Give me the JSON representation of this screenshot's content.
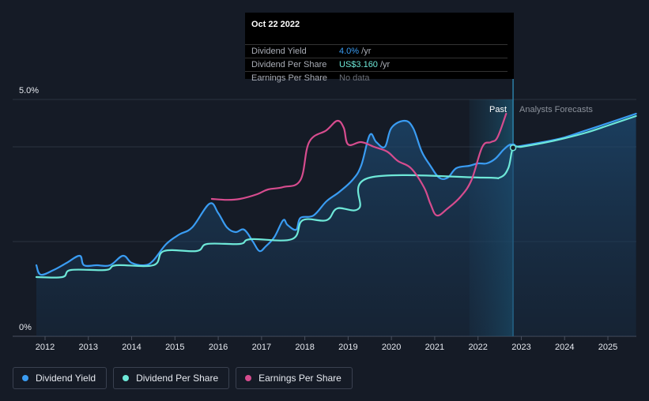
{
  "chart_data": {
    "type": "line",
    "y_axis": {
      "top_label": "5.0%",
      "bottom_label": "0%",
      "ylim": [
        0,
        5.0
      ],
      "grid": true
    },
    "x_ticks": [
      "2012",
      "2013",
      "2014",
      "2015",
      "2016",
      "2017",
      "2018",
      "2019",
      "2020",
      "2021",
      "2022",
      "2023",
      "2024",
      "2025"
    ],
    "xlim": [
      2011.8,
      2025.65
    ],
    "regions": {
      "past_label": "Past",
      "forecast_label": "Analysts Forecasts",
      "past_band_start": 2021.8,
      "present": 2022.81
    },
    "series": [
      {
        "name": "Dividend Yield",
        "color": "#3a9cf2",
        "filled": true,
        "points": [
          [
            2011.8,
            1.5
          ],
          [
            2011.9,
            1.3
          ],
          [
            2012.2,
            1.4
          ],
          [
            2012.5,
            1.55
          ],
          [
            2012.8,
            1.7
          ],
          [
            2012.9,
            1.5
          ],
          [
            2013.2,
            1.5
          ],
          [
            2013.5,
            1.5
          ],
          [
            2013.8,
            1.7
          ],
          [
            2014.0,
            1.55
          ],
          [
            2014.3,
            1.5
          ],
          [
            2014.5,
            1.6
          ],
          [
            2014.8,
            1.95
          ],
          [
            2015.1,
            2.15
          ],
          [
            2015.4,
            2.3
          ],
          [
            2015.8,
            2.8
          ],
          [
            2016.0,
            2.6
          ],
          [
            2016.2,
            2.3
          ],
          [
            2016.4,
            2.2
          ],
          [
            2016.6,
            2.25
          ],
          [
            2016.8,
            2.0
          ],
          [
            2016.95,
            1.8
          ],
          [
            2017.1,
            1.9
          ],
          [
            2017.3,
            2.1
          ],
          [
            2017.5,
            2.45
          ],
          [
            2017.6,
            2.35
          ],
          [
            2017.8,
            2.25
          ],
          [
            2017.9,
            2.5
          ],
          [
            2018.2,
            2.55
          ],
          [
            2018.5,
            2.85
          ],
          [
            2018.8,
            3.05
          ],
          [
            2019.1,
            3.3
          ],
          [
            2019.3,
            3.6
          ],
          [
            2019.5,
            4.25
          ],
          [
            2019.65,
            4.1
          ],
          [
            2019.85,
            4.0
          ],
          [
            2020.0,
            4.4
          ],
          [
            2020.3,
            4.55
          ],
          [
            2020.5,
            4.4
          ],
          [
            2020.7,
            3.9
          ],
          [
            2020.9,
            3.6
          ],
          [
            2021.1,
            3.35
          ],
          [
            2021.3,
            3.35
          ],
          [
            2021.5,
            3.55
          ],
          [
            2021.8,
            3.6
          ],
          [
            2022.0,
            3.65
          ],
          [
            2022.2,
            3.65
          ],
          [
            2022.4,
            3.75
          ],
          [
            2022.6,
            3.95
          ],
          [
            2022.75,
            4.05
          ],
          [
            2022.81,
            4.0
          ],
          [
            2023.0,
            4.02
          ],
          [
            2023.5,
            4.1
          ],
          [
            2024.0,
            4.2
          ],
          [
            2024.5,
            4.35
          ],
          [
            2025.0,
            4.5
          ],
          [
            2025.65,
            4.7
          ]
        ]
      },
      {
        "name": "Dividend Per Share",
        "color": "#6ee8d8",
        "filled": false,
        "points": [
          [
            2011.8,
            1.25
          ],
          [
            2012.4,
            1.25
          ],
          [
            2012.6,
            1.4
          ],
          [
            2013.4,
            1.4
          ],
          [
            2013.65,
            1.5
          ],
          [
            2014.5,
            1.5
          ],
          [
            2014.75,
            1.8
          ],
          [
            2015.5,
            1.8
          ],
          [
            2015.75,
            1.95
          ],
          [
            2016.5,
            1.95
          ],
          [
            2016.75,
            2.05
          ],
          [
            2017.7,
            2.05
          ],
          [
            2017.95,
            2.45
          ],
          [
            2018.5,
            2.45
          ],
          [
            2018.75,
            2.7
          ],
          [
            2019.25,
            2.7
          ],
          [
            2019.5,
            3.35
          ],
          [
            2022.1,
            3.35
          ],
          [
            2022.5,
            3.35
          ],
          [
            2022.7,
            3.55
          ],
          [
            2022.81,
            3.98
          ],
          [
            2023.0,
            4.0
          ],
          [
            2023.5,
            4.08
          ],
          [
            2024.0,
            4.18
          ],
          [
            2024.5,
            4.3
          ],
          [
            2025.0,
            4.45
          ],
          [
            2025.65,
            4.65
          ]
        ]
      },
      {
        "name": "Earnings Per Share",
        "color": "#d64c8e",
        "filled": false,
        "points": [
          [
            2015.85,
            2.9
          ],
          [
            2016.2,
            2.88
          ],
          [
            2016.5,
            2.9
          ],
          [
            2016.9,
            3.0
          ],
          [
            2017.15,
            3.1
          ],
          [
            2017.5,
            3.15
          ],
          [
            2017.9,
            3.3
          ],
          [
            2018.1,
            4.1
          ],
          [
            2018.5,
            4.35
          ],
          [
            2018.75,
            4.55
          ],
          [
            2018.9,
            4.4
          ],
          [
            2019.0,
            4.05
          ],
          [
            2019.3,
            4.1
          ],
          [
            2019.6,
            4.0
          ],
          [
            2019.9,
            3.9
          ],
          [
            2020.15,
            3.7
          ],
          [
            2020.45,
            3.55
          ],
          [
            2020.75,
            3.15
          ],
          [
            2020.9,
            2.8
          ],
          [
            2021.05,
            2.55
          ],
          [
            2021.3,
            2.7
          ],
          [
            2021.6,
            2.95
          ],
          [
            2021.85,
            3.3
          ],
          [
            2022.1,
            4.0
          ],
          [
            2022.3,
            4.1
          ],
          [
            2022.45,
            4.2
          ],
          [
            2022.65,
            4.7
          ]
        ]
      }
    ]
  },
  "tooltip": {
    "date": "Oct 22 2022",
    "rows": [
      {
        "label": "Dividend Yield",
        "value": "4.0%",
        "unit": " /yr"
      },
      {
        "label": "Dividend Per Share",
        "value": "US$3.160",
        "unit": " /yr"
      },
      {
        "label": "Earnings Per Share",
        "value": "No data",
        "unit": ""
      }
    ]
  },
  "legend": [
    {
      "label": "Dividend Yield",
      "color": "#3a9cf2"
    },
    {
      "label": "Dividend Per Share",
      "color": "#6ee8d8"
    },
    {
      "label": "Earnings Per Share",
      "color": "#d64c8e"
    }
  ]
}
